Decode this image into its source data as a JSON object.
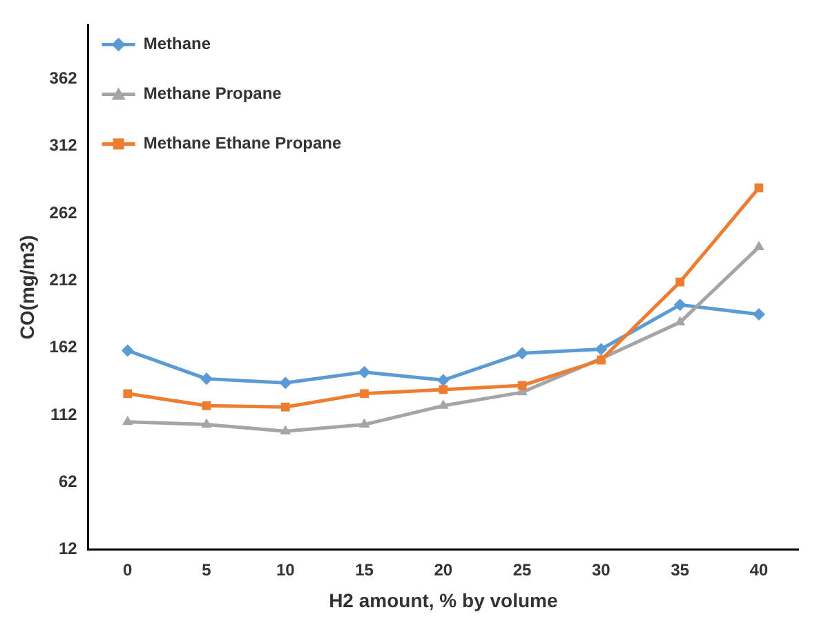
{
  "chart_data": {
    "type": "line",
    "xlabel": "H2 amount, % by volume",
    "ylabel": "CO(mg/m3)",
    "categories": [
      "0",
      "5",
      "10",
      "15",
      "20",
      "25",
      "30",
      "35",
      "40"
    ],
    "ylim": [
      12,
      402
    ],
    "yticks": [
      12,
      62,
      112,
      162,
      212,
      262,
      312,
      362
    ],
    "grid": false,
    "legend": "top left",
    "line_style": "solid",
    "series": [
      {
        "name": "Methane",
        "color": "#5b9bd5",
        "marker": "diamond",
        "values": [
          160,
          139,
          136,
          144,
          138,
          158,
          161,
          194,
          187
        ]
      },
      {
        "name": "Methane Propane",
        "color": "#a5a5a5",
        "marker": "triangle",
        "values": [
          107,
          105,
          100,
          105,
          119,
          129,
          154,
          181,
          237
        ]
      },
      {
        "name": "Methane Ethane Propane",
        "color": "#ed7d31",
        "marker": "square",
        "values": [
          128,
          119,
          118,
          128,
          131,
          134,
          153,
          211,
          281
        ]
      }
    ]
  }
}
